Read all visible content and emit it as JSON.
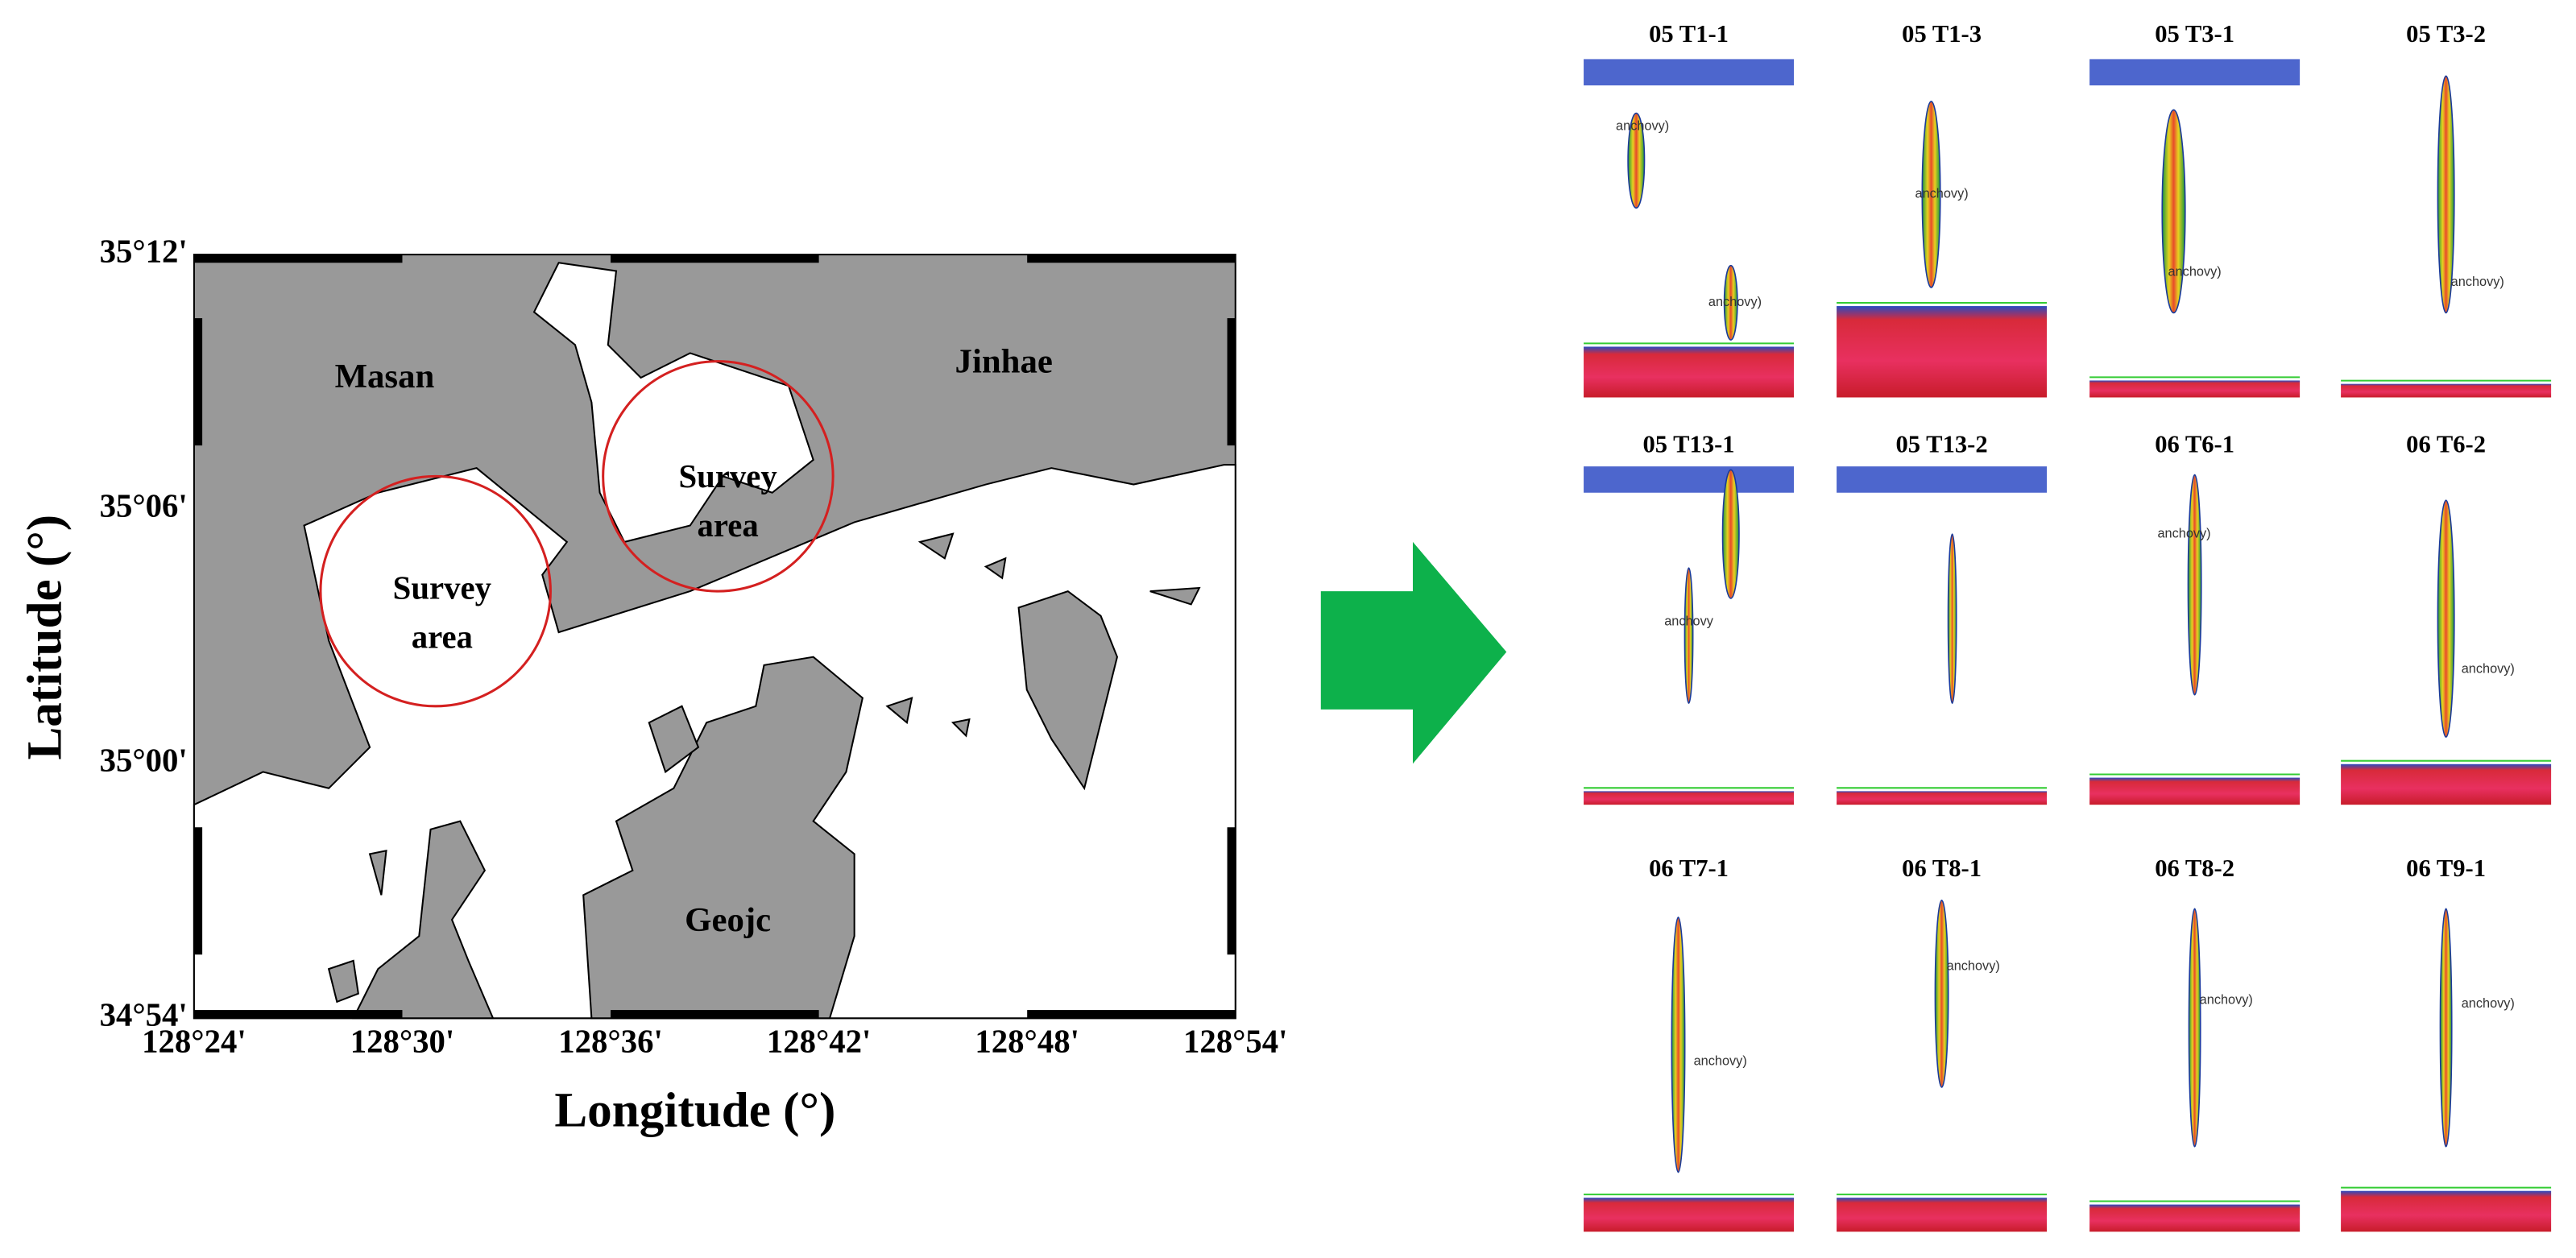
{
  "map": {
    "y_axis_label": "Latitude (°)",
    "x_axis_label": "Longitude (°)",
    "yticks": [
      "35°12'",
      "35°06'",
      "35°00'",
      "34°54'"
    ],
    "xticks": [
      "128°24'",
      "128°30'",
      "128°36'",
      "128°42'",
      "128°48'",
      "128°54'"
    ],
    "places": [
      "Masan",
      "Jinhae",
      "Geojc"
    ],
    "survey_areas": [
      [
        "Survey",
        "area"
      ],
      [
        "Survey",
        "area"
      ]
    ]
  },
  "panels": [
    {
      "title": "05 T1-1",
      "labels": [
        "anchovy)",
        "anchovy)"
      ]
    },
    {
      "title": "05 T1-3",
      "labels": [
        "anchovy)"
      ]
    },
    {
      "title": "05 T3-1",
      "labels": [
        "anchovy)"
      ]
    },
    {
      "title": "05 T3-2",
      "labels": [
        "anchovy)"
      ]
    },
    {
      "title": "05 T13-1",
      "labels": [
        "anchovy"
      ]
    },
    {
      "title": "05 T13-2",
      "labels": []
    },
    {
      "title": "06 T6-1",
      "labels": [
        "anchovy)"
      ]
    },
    {
      "title": "06 T6-2",
      "labels": [
        "anchovy)"
      ]
    },
    {
      "title": "06 T7-1",
      "labels": [
        "anchovy)"
      ]
    },
    {
      "title": "06 T8-1",
      "labels": [
        "anchovy)"
      ]
    },
    {
      "title": "06 T8-2",
      "labels": [
        "anchovy)"
      ]
    },
    {
      "title": "06 T9-1",
      "labels": [
        "anchovy)"
      ]
    }
  ]
}
